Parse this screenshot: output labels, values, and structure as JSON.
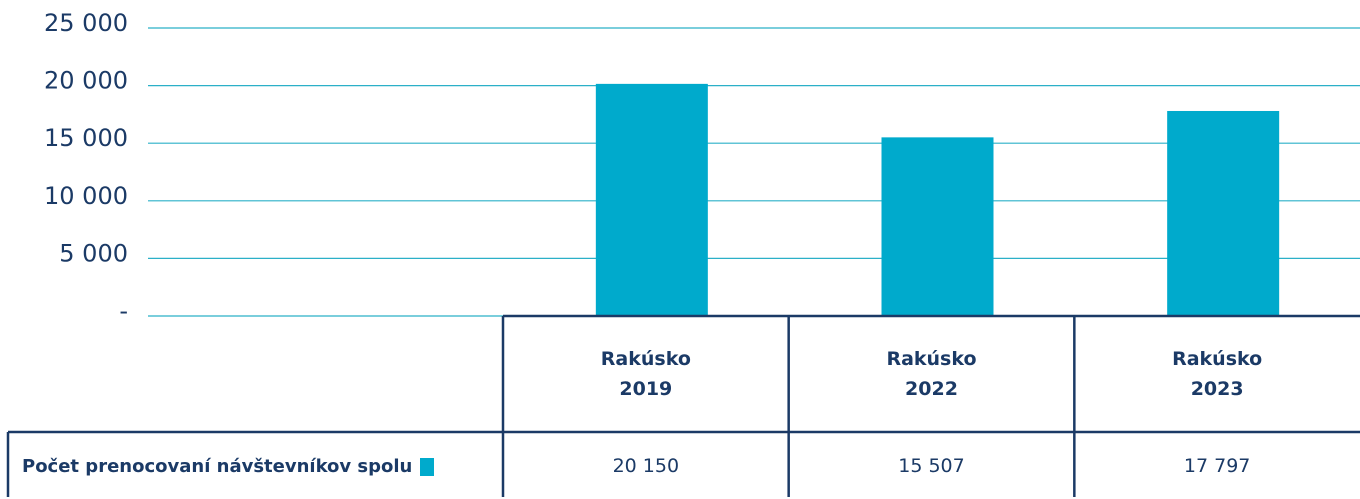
{
  "chart_data": {
    "type": "bar",
    "categories": [
      "Rakúsko 2019",
      "Rakúsko 2022",
      "Rakúsko 2023"
    ],
    "series": [
      {
        "name": "Počet prenocovaní návštevníkov spolu",
        "color": "#00aacc",
        "values": [
          20150,
          15507,
          17797
        ],
        "value_labels": [
          "20 150",
          "15 507",
          "17 797"
        ]
      }
    ],
    "ylim": [
      0,
      25000
    ],
    "yticks": [
      {
        "value": 0,
        "label": "-"
      },
      {
        "value": 5000,
        "label": "5 000"
      },
      {
        "value": 10000,
        "label": "10 000"
      },
      {
        "value": 15000,
        "label": "15 000"
      },
      {
        "value": 20000,
        "label": "20 000"
      },
      {
        "value": 25000,
        "label": "25 000"
      }
    ],
    "grid": true
  }
}
